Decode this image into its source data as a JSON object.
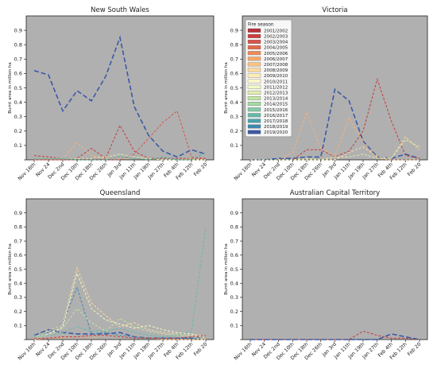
{
  "chart_data": [
    {
      "type": "line",
      "title": "New South Wales",
      "ylabel": "Burnt area in million ha",
      "xlabel": "",
      "categories": [
        "Nov 16th",
        "Nov 24",
        "Dec 2nd",
        "Dec 10th",
        "Dec 18th",
        "Dec 26th",
        "Jan 3rd",
        "Jan 11th",
        "Jan 19th",
        "Jan 27th",
        "Feb 4th",
        "Feb 12th",
        "Feb 20"
      ],
      "y_ticks": [
        "0.1",
        "0.2",
        "0.3",
        "0.4",
        "0.5",
        "0.6",
        "0.7",
        "0.8",
        "0.9"
      ],
      "ylim": [
        0,
        1.0
      ],
      "background": "#b0b0b0",
      "series": [
        {
          "name": "2019/2020",
          "color": "#3b5aa6",
          "values": [
            0.62,
            0.59,
            0.34,
            0.48,
            0.41,
            0.58,
            0.85,
            0.37,
            0.17,
            0.06,
            0.02,
            0.07,
            0.04
          ]
        },
        {
          "name": "2002/2003",
          "color": "#c43b3b",
          "values": [
            0.03,
            0.02,
            0.01,
            0.01,
            0.08,
            0.01,
            0.24,
            0.06,
            0.01,
            0.01,
            0.01,
            0.01,
            0.01
          ]
        },
        {
          "name": "2003/2004",
          "color": "#d9534a",
          "values": [
            0.0,
            0.0,
            0.0,
            0.0,
            0.01,
            0.0,
            0.0,
            0.04,
            0.15,
            0.26,
            0.34,
            0.02,
            0.01
          ]
        },
        {
          "name": "2006/2007",
          "color": "#f5b27a",
          "values": [
            0.01,
            0.01,
            0.01,
            0.12,
            0.03,
            0.01,
            0.01,
            0.01,
            0.01,
            0.0,
            0.0,
            0.01,
            0.0
          ]
        },
        {
          "name": "2011/2012",
          "color": "#e0eba8",
          "values": [
            0.01,
            0.01,
            0.01,
            0.01,
            0.01,
            0.02,
            0.04,
            0.02,
            0.01,
            0.0,
            0.0,
            0.0,
            0.0
          ]
        },
        {
          "name": "2017/2018",
          "color": "#4fae9f",
          "values": [
            0.01,
            0.01,
            0.01,
            0.0,
            0.0,
            0.0,
            0.02,
            0.01,
            0.0,
            0.02,
            0.0,
            0.0,
            0.05
          ]
        }
      ]
    },
    {
      "type": "line",
      "title": "Victoria",
      "ylabel": "Burnt area in million ha",
      "xlabel": "",
      "categories": [
        "Nov 16th",
        "Nov 24",
        "Dec 2nd",
        "Dec 10th",
        "Dec 18th",
        "Dec 26th",
        "Jan 3rd",
        "Jan 11th",
        "Jan 19th",
        "Jan 27th",
        "Feb 4th",
        "Feb 12th",
        "Feb 20"
      ],
      "y_ticks": [
        "0.1",
        "0.2",
        "0.3",
        "0.4",
        "0.5",
        "0.6",
        "0.7",
        "0.8",
        "0.9"
      ],
      "ylim": [
        0,
        1.0
      ],
      "background": "#b0b0b0",
      "legend_title": "Fire season",
      "legend_position": "top-left",
      "legend": [
        {
          "label": "2001/2002",
          "color": "#b8333a"
        },
        {
          "label": "2002/2003",
          "color": "#c9403f"
        },
        {
          "label": "2003/2004",
          "color": "#d9534a"
        },
        {
          "label": "2004/2005",
          "color": "#e46a4d"
        },
        {
          "label": "2005/2006",
          "color": "#ee8a5a"
        },
        {
          "label": "2006/2007",
          "color": "#f5a86b"
        },
        {
          "label": "2007/2008",
          "color": "#f8c383"
        },
        {
          "label": "2008/2009",
          "color": "#fbda9b"
        },
        {
          "label": "2009/2010",
          "color": "#fdedb5"
        },
        {
          "label": "2010/2011",
          "color": "#fdf8cc"
        },
        {
          "label": "2011/2012",
          "color": "#f4f9c6"
        },
        {
          "label": "2012/2013",
          "color": "#e0efb0"
        },
        {
          "label": "2013/2014",
          "color": "#c4e5a4"
        },
        {
          "label": "2014/2015",
          "color": "#a5d9a3"
        },
        {
          "label": "2015/2016",
          "color": "#85cba6"
        },
        {
          "label": "2016/2017",
          "color": "#64b9a8"
        },
        {
          "label": "2017/2018",
          "color": "#4aa2ac"
        },
        {
          "label": "2018/2019",
          "color": "#3f87b0"
        },
        {
          "label": "2019/2020",
          "color": "#3b5aa6"
        }
      ],
      "series": [
        {
          "name": "2019/2020",
          "color": "#3b5aa6",
          "values": [
            0.0,
            0.0,
            0.01,
            0.01,
            0.02,
            0.02,
            0.49,
            0.41,
            0.13,
            0.02,
            0.01,
            0.04,
            0.01
          ]
        },
        {
          "name": "2002/2003",
          "color": "#c43b3b",
          "values": [
            0.0,
            0.0,
            0.0,
            0.0,
            0.07,
            0.07,
            0.02,
            0.06,
            0.2,
            0.56,
            0.27,
            0.03,
            0.01
          ]
        },
        {
          "name": "2006/2007",
          "color": "#f5b27a",
          "values": [
            0.0,
            0.0,
            0.0,
            0.05,
            0.33,
            0.08,
            0.03,
            0.29,
            0.12,
            0.01,
            0.0,
            0.0,
            0.0
          ]
        },
        {
          "name": "2008/2009",
          "color": "#fbda9b",
          "values": [
            0.0,
            0.0,
            0.0,
            0.0,
            0.0,
            0.0,
            0.0,
            0.05,
            0.09,
            0.02,
            0.01,
            0.16,
            0.07
          ]
        },
        {
          "name": "2011/2012",
          "color": "#e0eba8",
          "values": [
            0.0,
            0.0,
            0.0,
            0.0,
            0.01,
            0.0,
            0.02,
            0.02,
            0.04,
            0.01,
            0.01,
            0.14,
            0.09
          ]
        }
      ]
    },
    {
      "type": "line",
      "title": "Queensland",
      "ylabel": "Burnt area in million ha",
      "xlabel": "",
      "categories": [
        "Nov 16th",
        "Nov 24",
        "Dec 2nd",
        "Dec 10th",
        "Dec 18th",
        "Dec 26th",
        "Jan 3rd",
        "Jan 11th",
        "Jan 19th",
        "Jan 27th",
        "Feb 4th",
        "Feb 12th",
        "Feb 20"
      ],
      "y_ticks": [
        "0.1",
        "0.2",
        "0.3",
        "0.4",
        "0.5",
        "0.6",
        "0.7",
        "0.8",
        "0.9"
      ],
      "ylim": [
        0,
        1.0
      ],
      "background": "#b0b0b0",
      "series": [
        {
          "name": "2019/2020",
          "color": "#3b5aa6",
          "values": [
            0.03,
            0.07,
            0.05,
            0.04,
            0.04,
            0.04,
            0.05,
            0.02,
            0.01,
            0.01,
            0.01,
            0.01,
            0.02
          ]
        },
        {
          "name": "2018/2019",
          "color": "#3f87b0",
          "values": [
            0.03,
            0.05,
            0.12,
            0.37,
            0.04,
            0.05,
            0.03,
            0.02,
            0.01,
            0.01,
            0.01,
            0.01,
            0.0
          ]
        },
        {
          "name": "2008/2009",
          "color": "#fbda9b",
          "values": [
            0.02,
            0.06,
            0.11,
            0.51,
            0.26,
            0.17,
            0.09,
            0.12,
            0.07,
            0.05,
            0.04,
            0.03,
            0.01
          ]
        },
        {
          "name": "2011/2012",
          "color": "#f4f9c6",
          "values": [
            0.01,
            0.04,
            0.09,
            0.47,
            0.22,
            0.14,
            0.11,
            0.08,
            0.1,
            0.07,
            0.05,
            0.04,
            0.02
          ]
        },
        {
          "name": "2013/2014",
          "color": "#c4e5a4",
          "values": [
            0.01,
            0.03,
            0.08,
            0.22,
            0.12,
            0.06,
            0.15,
            0.09,
            0.06,
            0.04,
            0.03,
            0.02,
            0.0
          ]
        },
        {
          "name": "2016/2017",
          "color": "#64b9a8",
          "values": [
            0.02,
            0.03,
            0.05,
            0.09,
            0.06,
            0.06,
            0.08,
            0.05,
            0.03,
            0.02,
            0.03,
            0.06,
            0.8
          ]
        },
        {
          "name": "2006/2007",
          "color": "#f5a86b",
          "values": [
            0.0,
            0.01,
            0.01,
            0.02,
            0.01,
            0.03,
            0.02,
            0.01,
            0.01,
            0.0,
            0.0,
            0.0,
            0.0
          ]
        },
        {
          "name": "2002/2003",
          "color": "#c43b3b",
          "values": [
            0.01,
            0.01,
            0.02,
            0.02,
            0.03,
            0.03,
            0.02,
            0.01,
            0.01,
            0.01,
            0.01,
            0.02,
            0.03
          ]
        }
      ]
    },
    {
      "type": "line",
      "title": "Australian Capital Territory",
      "ylabel": "Burnt area in million ha",
      "xlabel": "",
      "categories": [
        "Nov 16th",
        "Nov 24",
        "Dec 2nd",
        "Dec 10th",
        "Dec 18th",
        "Dec 26th",
        "Jan 3rd",
        "Jan 11th",
        "Jan 19th",
        "Jan 27th",
        "Feb 4th",
        "Feb 12th",
        "Feb 20"
      ],
      "y_ticks": [
        "0.1",
        "0.2",
        "0.3",
        "0.4",
        "0.5",
        "0.6",
        "0.7",
        "0.8",
        "0.9"
      ],
      "ylim": [
        0,
        1.0
      ],
      "background": "#b0b0b0",
      "series": [
        {
          "name": "2002/2003",
          "color": "#c43b3b",
          "values": [
            0.0,
            0.0,
            0.0,
            0.0,
            0.0,
            0.0,
            0.0,
            0.0,
            0.06,
            0.03,
            0.01,
            0.01,
            0.0
          ]
        },
        {
          "name": "2019/2020",
          "color": "#3b5aa6",
          "values": [
            0.0,
            0.0,
            0.0,
            0.0,
            0.0,
            0.0,
            0.0,
            0.0,
            0.0,
            0.0,
            0.04,
            0.02,
            0.0
          ]
        }
      ]
    }
  ]
}
